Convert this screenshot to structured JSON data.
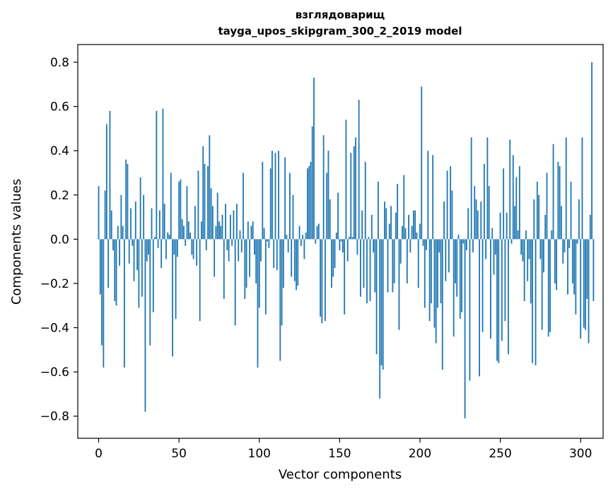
{
  "chart_data": {
    "type": "bar",
    "title": "взглядоварищ",
    "subtitle": "tayga_upos_skipgram_300_2_2019 model",
    "xlabel": "Vector components",
    "ylabel": "Components values",
    "xlim": [
      -13,
      314
    ],
    "ylim": [
      -0.9,
      0.88
    ],
    "xticks": [
      0,
      50,
      100,
      150,
      200,
      250,
      300
    ],
    "xtick_labels": [
      "0",
      "50",
      "100",
      "150",
      "200",
      "250",
      "300"
    ],
    "yticks": [
      -0.8,
      -0.6,
      -0.4,
      -0.2,
      0.0,
      0.2,
      0.4,
      0.6,
      0.8
    ],
    "ytick_labels": [
      "−0.8",
      "−0.6",
      "−0.4",
      "−0.2",
      "0.0",
      "0.2",
      "0.4",
      "0.6",
      "0.8"
    ],
    "bar_color": "#1f77b4",
    "grid": false,
    "values": [
      0.24,
      -0.25,
      -0.48,
      -0.58,
      0.22,
      0.52,
      -0.22,
      0.58,
      0.13,
      -0.05,
      -0.28,
      -0.3,
      0.06,
      -0.12,
      0.2,
      0.06,
      -0.58,
      0.36,
      0.34,
      -0.11,
      0.14,
      -0.03,
      -0.19,
      0.17,
      -0.14,
      -0.31,
      0.28,
      -0.26,
      0.2,
      -0.78,
      -0.1,
      -0.07,
      -0.48,
      0.14,
      -0.33,
      0.01,
      0.58,
      -0.04,
      0.13,
      -0.13,
      0.59,
      0.16,
      -0.09,
      0.03,
      0.02,
      0.3,
      -0.53,
      -0.07,
      -0.36,
      -0.08,
      0.26,
      0.27,
      0.09,
      0.06,
      -0.03,
      0.24,
      0.08,
      0.03,
      -0.07,
      -0.09,
      0.15,
      -0.12,
      0.31,
      -0.37,
      0.08,
      0.42,
      0.34,
      -0.05,
      0.33,
      0.47,
      0.23,
      0.15,
      -0.17,
      0.06,
      0.21,
      0.08,
      0.06,
      0.11,
      -0.27,
      0.16,
      -0.05,
      -0.1,
      0.11,
      -0.03,
      0.13,
      -0.39,
      0.16,
      -0.1,
      0.04,
      -0.06,
      0.3,
      -0.27,
      -0.22,
      0.08,
      -0.17,
      0.06,
      0.08,
      -0.07,
      -0.2,
      -0.58,
      -0.31,
      -0.1,
      0.35,
      0.05,
      -0.34,
      -0.01,
      -0.04,
      0.32,
      0.4,
      -0.13,
      0.39,
      -0.14,
      0.4,
      -0.55,
      -0.39,
      -0.22,
      0.37,
      0.02,
      -0.06,
      0.3,
      -0.17,
      0.2,
      -0.19,
      -0.23,
      -0.21,
      0.06,
      -0.03,
      0.02,
      -0.09,
      0.03,
      0.32,
      0.33,
      0.35,
      0.51,
      0.73,
      -0.02,
      0.06,
      0.07,
      -0.35,
      -0.38,
      0.47,
      -0.37,
      0.3,
      0.4,
      0.18,
      -0.22,
      -0.17,
      -0.13,
      0.03,
      0.21,
      -0.05,
      -0.01,
      -0.06,
      -0.34,
      0.54,
      -0.1,
      0.01,
      0.39,
      0.01,
      0.42,
      0.46,
      -0.07,
      0.63,
      -0.26,
      0.13,
      -0.22,
      0.35,
      -0.29,
      0.01,
      -0.28,
      0.11,
      -0.06,
      -0.24,
      -0.52,
      0.26,
      -0.72,
      -0.57,
      -0.59,
      0.17,
      0.14,
      -0.24,
      0.07,
      0.15,
      -0.24,
      -0.2,
      0.12,
      0.25,
      -0.41,
      -0.11,
      0.06,
      0.29,
      0.05,
      -0.2,
      0.11,
      -0.06,
      0.06,
      0.13,
      0.13,
      0.03,
      -0.22,
      0.07,
      0.69,
      -0.03,
      -0.31,
      -0.05,
      0.4,
      -0.37,
      -0.29,
      0.38,
      -0.4,
      -0.47,
      -0.31,
      -0.06,
      -0.29,
      -0.59,
      0.17,
      -0.19,
      0.31,
      -0.15,
      0.33,
      0.22,
      -0.44,
      -0.2,
      -0.26,
      0.02,
      -0.36,
      -0.33,
      -0.02,
      -0.81,
      -0.05,
      0.14,
      -0.64,
      0.46,
      -0.06,
      0.24,
      0.18,
      0.13,
      -0.62,
      0.17,
      -0.42,
      0.34,
      -0.09,
      0.46,
      0.24,
      -0.45,
      0.05,
      -0.16,
      -0.07,
      -0.55,
      -0.56,
      0.12,
      -0.46,
      0.32,
      -0.37,
      0.12,
      -0.52,
      0.45,
      -0.02,
      0.38,
      0.15,
      0.28,
      0.04,
      0.33,
      -0.07,
      -0.1,
      -0.28,
      0.04,
      -0.19,
      -0.09,
      -0.29,
      -0.56,
      0.18,
      -0.57,
      0.26,
      0.2,
      -0.09,
      -0.41,
      -0.15,
      0.11,
      0.3,
      -0.44,
      -0.42,
      0.04,
      0.43,
      -0.2,
      -0.23,
      0.35,
      0.33,
      0.15,
      -0.11,
      -0.06,
      0.46,
      -0.25,
      -0.04,
      0.26,
      -0.2,
      -0.25,
      -0.34,
      -0.02,
      0.18,
      -0.45,
      0.46,
      -0.4,
      -0.41,
      -0.27,
      -0.47,
      0.11,
      0.8,
      -0.28
    ]
  }
}
